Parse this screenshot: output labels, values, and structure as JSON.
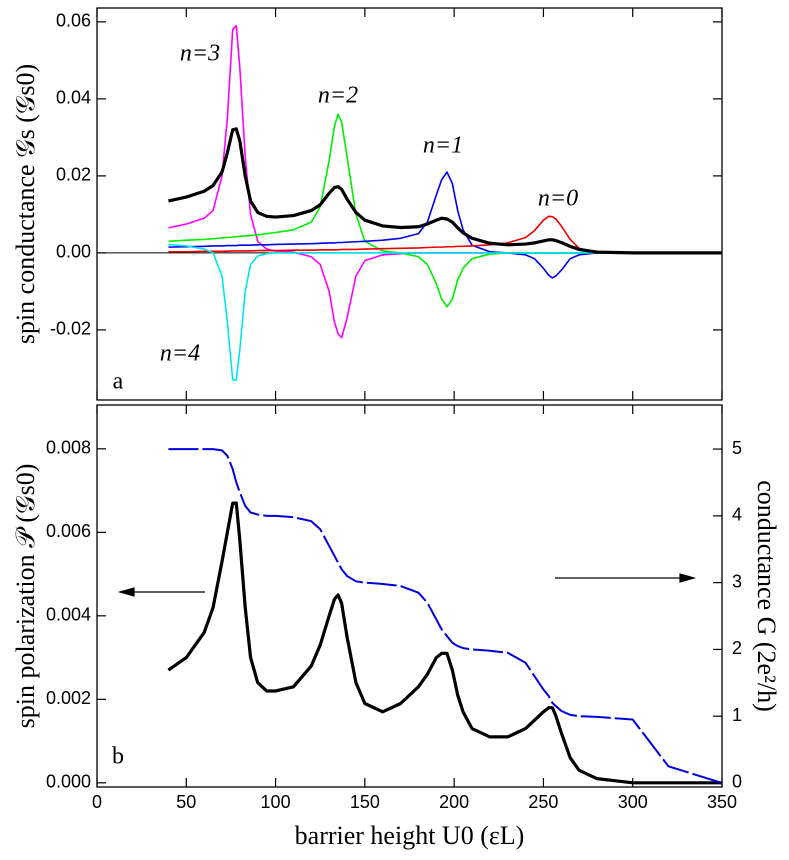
{
  "chart_data": [
    {
      "type": "line",
      "ylabel": "spin conductance 𝒢s (𝒢s0)",
      "xlim": [
        0,
        350
      ],
      "xticks": [
        0,
        50,
        100,
        150,
        200,
        250,
        300,
        350
      ],
      "ylim": [
        -0.0382,
        0.0636
      ],
      "yticks": [
        {
          "value": -0.02,
          "label": "-0.02"
        },
        {
          "value": 0,
          "label": "0.00"
        },
        0.02,
        0.04,
        0.06
      ],
      "annotations": [
        "n=3",
        "n=2",
        "n=1",
        "n=0",
        "n=4",
        "a"
      ],
      "x": [
        40,
        50,
        60,
        65,
        70,
        73,
        76,
        78,
        80,
        83,
        86,
        90,
        95,
        100,
        110,
        120,
        125,
        130,
        133,
        135,
        137,
        140,
        145,
        150,
        160,
        170,
        180,
        185,
        190,
        193,
        196,
        199,
        202,
        205,
        210,
        220,
        230,
        240,
        245,
        250,
        253,
        255,
        257,
        260,
        265,
        270,
        280,
        300,
        320,
        350
      ],
      "series": [
        {
          "color": "#ff00ff",
          "width": 1.6,
          "values": [
            0.0065,
            0.0075,
            0.009,
            0.011,
            0.02,
            0.035,
            0.058,
            0.059,
            0.048,
            0.025,
            0.01,
            0.003,
            0.001,
            0.0005,
            0.0002,
            -0.001,
            -0.003,
            -0.01,
            -0.018,
            -0.021,
            -0.022,
            -0.017,
            -0.006,
            -0.002,
            -0.0005,
            -0.0002,
            0,
            0,
            0,
            0,
            0,
            0,
            0,
            0,
            0,
            0,
            0,
            0,
            0,
            0,
            0,
            0,
            0,
            0,
            0,
            0,
            0,
            0,
            0,
            0
          ]
        },
        {
          "color": "#00ee00",
          "width": 1.6,
          "values": [
            0.003,
            0.0033,
            0.0035,
            0.0037,
            0.0039,
            0.004,
            0.0041,
            0.0042,
            0.0043,
            0.0044,
            0.0045,
            0.0047,
            0.005,
            0.0053,
            0.006,
            0.008,
            0.012,
            0.024,
            0.033,
            0.036,
            0.034,
            0.025,
            0.01,
            0.003,
            0.0005,
            0,
            -0.001,
            -0.003,
            -0.008,
            -0.012,
            -0.014,
            -0.012,
            -0.007,
            -0.004,
            -0.0015,
            -0.0003,
            0,
            0,
            0,
            0,
            0,
            0,
            0,
            0,
            0,
            0,
            0,
            0,
            0,
            0
          ]
        },
        {
          "color": "#0000ee",
          "width": 1.6,
          "values": [
            0.0015,
            0.0016,
            0.0017,
            0.0018,
            0.0018,
            0.0019,
            0.0019,
            0.0019,
            0.002,
            0.002,
            0.002,
            0.0021,
            0.0021,
            0.0022,
            0.0023,
            0.0024,
            0.0025,
            0.0026,
            0.0026,
            0.0027,
            0.0027,
            0.0028,
            0.0029,
            0.003,
            0.0033,
            0.0038,
            0.005,
            0.008,
            0.015,
            0.019,
            0.021,
            0.018,
            0.011,
            0.006,
            0.002,
            0.0003,
            0,
            -0.0005,
            -0.0015,
            -0.004,
            -0.0058,
            -0.0065,
            -0.006,
            -0.0045,
            -0.0015,
            -0.0005,
            0,
            0,
            0,
            0
          ]
        },
        {
          "color": "#ee0000",
          "width": 1.6,
          "values": [
            0.0003,
            0.0003,
            0.0004,
            0.0004,
            0.0004,
            0.0004,
            0.0005,
            0.0005,
            0.0005,
            0.0005,
            0.0005,
            0.0006,
            0.0006,
            0.0006,
            0.0007,
            0.0007,
            0.0008,
            0.0008,
            0.0008,
            0.0008,
            0.0009,
            0.0009,
            0.0009,
            0.001,
            0.0011,
            0.0012,
            0.0013,
            0.0014,
            0.0015,
            0.0015,
            0.0016,
            0.0016,
            0.0017,
            0.0017,
            0.0018,
            0.0021,
            0.0026,
            0.004,
            0.0058,
            0.0085,
            0.0095,
            0.0094,
            0.0088,
            0.007,
            0.0035,
            0.0012,
            0.0002,
            0,
            0,
            0
          ]
        },
        {
          "color": "#00e5ee",
          "width": 1.6,
          "values": [
            0.0022,
            0.0018,
            0.001,
            0,
            -0.006,
            -0.018,
            -0.033,
            -0.033,
            -0.025,
            -0.01,
            -0.003,
            -0.0008,
            -0.0002,
            0,
            0,
            0,
            0,
            0,
            0,
            0,
            0,
            0,
            0,
            0,
            0,
            0,
            0,
            0,
            0,
            0,
            0,
            0,
            0,
            0,
            0,
            0,
            0,
            0,
            0,
            0,
            0,
            0,
            0,
            0,
            0,
            0,
            0,
            0,
            0,
            0
          ]
        },
        {
          "color": "#000000",
          "width": 3.2,
          "values": [
            0.0135,
            0.0145,
            0.016,
            0.0175,
            0.021,
            0.026,
            0.032,
            0.0322,
            0.029,
            0.02,
            0.0135,
            0.0105,
            0.0095,
            0.0093,
            0.0097,
            0.011,
            0.0125,
            0.0155,
            0.017,
            0.0172,
            0.0165,
            0.014,
            0.0105,
            0.0085,
            0.007,
            0.0066,
            0.0068,
            0.0075,
            0.0085,
            0.009,
            0.0088,
            0.008,
            0.0065,
            0.0052,
            0.0038,
            0.0025,
            0.0021,
            0.0023,
            0.0026,
            0.0031,
            0.0034,
            0.0034,
            0.0032,
            0.0027,
            0.0017,
            0.0009,
            0.0002,
            0,
            0,
            0
          ]
        }
      ]
    },
    {
      "type": "line",
      "xlabel": "barrier height U0 (εL)",
      "ylabel": "spin polarization 𝒫 (𝒢s0)",
      "y2label": "conductance G (2e²/h)",
      "xlim": [
        0,
        350
      ],
      "xticks": [
        0,
        50,
        100,
        150,
        200,
        250,
        300,
        350
      ],
      "ylim": [
        -0.0001,
        0.00905
      ],
      "yticks": [
        {
          "value": 0,
          "label": "0.000"
        },
        {
          "value": 0.002,
          "label": "0.002"
        },
        {
          "value": 0.004,
          "label": "0.004"
        },
        {
          "value": 0.006,
          "label": "0.006"
        },
        {
          "value": 0.008,
          "label": "0.008"
        }
      ],
      "y2lim": [
        -0.06,
        5.66
      ],
      "y2ticks": [
        0,
        1,
        2,
        3,
        4,
        5
      ],
      "annotations": [
        "b"
      ],
      "x": [
        40,
        50,
        60,
        65,
        70,
        73,
        76,
        78,
        80,
        83,
        86,
        90,
        95,
        100,
        110,
        120,
        125,
        130,
        133,
        135,
        137,
        140,
        145,
        150,
        160,
        170,
        180,
        185,
        190,
        193,
        196,
        199,
        202,
        205,
        210,
        220,
        230,
        240,
        245,
        250,
        253,
        255,
        257,
        260,
        265,
        270,
        280,
        300,
        320,
        350
      ],
      "series": [
        {
          "color": "#000000",
          "width": 3.2,
          "values": [
            0.0027,
            0.003,
            0.0036,
            0.0042,
            0.0053,
            0.006,
            0.0067,
            0.0067,
            0.0058,
            0.0042,
            0.003,
            0.0024,
            0.0022,
            0.0022,
            0.0023,
            0.0028,
            0.0033,
            0.004,
            0.0044,
            0.0045,
            0.0043,
            0.0035,
            0.0024,
            0.0019,
            0.0017,
            0.0019,
            0.0023,
            0.0026,
            0.003,
            0.0031,
            0.0031,
            0.0027,
            0.0021,
            0.0017,
            0.0013,
            0.0011,
            0.0011,
            0.0013,
            0.0015,
            0.0017,
            0.0018,
            0.0018,
            0.0016,
            0.0012,
            0.0006,
            0.0003,
            0.0001,
            0,
            0,
            0
          ]
        },
        {
          "color": "#0000dd",
          "width": 2,
          "dashed": true,
          "axis": "y2",
          "values": [
            5,
            5,
            5,
            5,
            4.98,
            4.9,
            4.7,
            4.5,
            4.35,
            4.15,
            4.05,
            4.02,
            4,
            4,
            3.98,
            3.92,
            3.8,
            3.55,
            3.4,
            3.3,
            3.2,
            3.1,
            3.02,
            3,
            2.98,
            2.95,
            2.85,
            2.7,
            2.45,
            2.3,
            2.2,
            2.1,
            2.05,
            2.02,
            2,
            1.98,
            1.95,
            1.8,
            1.6,
            1.4,
            1.3,
            1.2,
            1.15,
            1.08,
            1.02,
            1,
            0.99,
            0.95,
            0.25,
            0
          ]
        }
      ]
    }
  ]
}
